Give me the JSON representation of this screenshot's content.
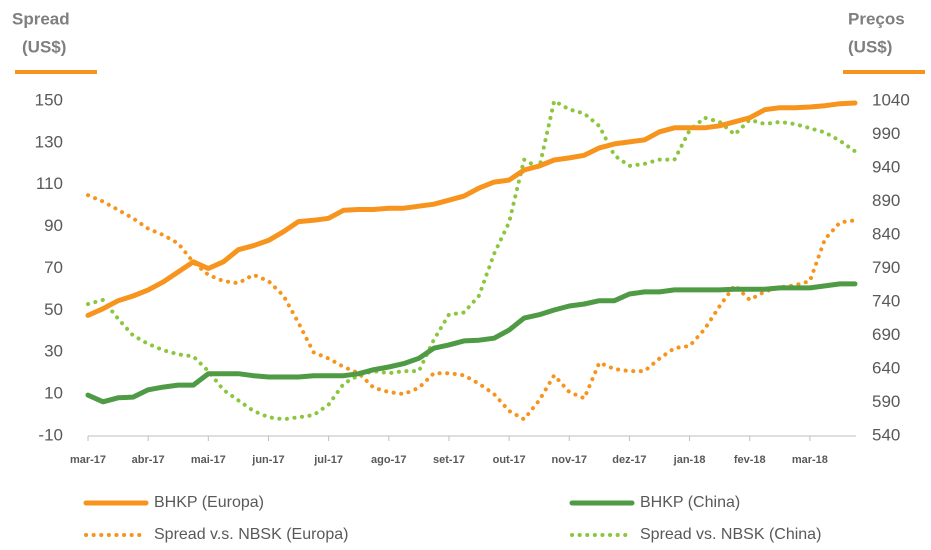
{
  "chart_data": {
    "type": "line",
    "ylabel": [
      "Spread",
      "(US$)"
    ],
    "y2label": [
      "Preços",
      "(US$)"
    ],
    "categories": [
      "mar-17",
      null,
      null,
      null,
      "abr-17",
      null,
      null,
      null,
      "mai-17",
      null,
      null,
      null,
      "jun-17",
      null,
      null,
      null,
      "jul-17",
      null,
      null,
      null,
      "ago-17",
      null,
      null,
      null,
      "set-17",
      null,
      null,
      null,
      "out-17",
      null,
      null,
      null,
      "nov-17",
      null,
      null,
      null,
      "dez-17",
      null,
      null,
      null,
      "jan-18",
      null,
      null,
      null,
      "fev-18",
      null,
      null,
      null,
      "mar-18",
      null,
      null,
      null
    ],
    "ylim": [
      -10,
      150
    ],
    "yticks": [
      -10,
      10,
      30,
      50,
      70,
      90,
      110,
      130,
      150
    ],
    "y2lim": [
      540,
      1040
    ],
    "y2ticks": [
      540,
      590,
      640,
      690,
      740,
      790,
      840,
      890,
      940,
      990,
      1040
    ],
    "series": [
      {
        "name": "BHKP (Europa)",
        "color": "#f7941d",
        "style": "solid",
        "axis": "y2",
        "values": [
          720,
          730,
          742,
          749,
          758,
          770,
          785,
          800,
          790,
          800,
          818,
          824,
          832,
          845,
          860,
          862,
          865,
          877,
          878,
          878,
          880,
          880,
          883,
          886,
          892,
          898,
          910,
          919,
          922,
          937,
          943,
          952,
          955,
          959,
          970,
          976,
          979,
          982,
          994,
          1000,
          1000,
          1000,
          1003,
          1009,
          1015,
          1027,
          1030,
          1030,
          1031,
          1033,
          1036,
          1037
        ]
      },
      {
        "name": "BHKP (China)",
        "color": "#4e9a45",
        "style": "solid",
        "axis": "y2",
        "values": [
          601,
          591,
          597,
          598,
          609,
          613,
          616,
          616,
          633,
          633,
          633,
          630,
          628,
          628,
          628,
          630,
          630,
          630,
          633,
          639,
          643,
          648,
          656,
          671,
          676,
          682,
          683,
          686,
          698,
          716,
          721,
          728,
          734,
          737,
          742,
          742,
          752,
          755,
          755,
          758,
          758,
          758,
          758,
          759,
          759,
          759,
          761,
          761,
          761,
          764,
          767,
          767
        ]
      },
      {
        "name": "Spread v.s. NBSK (Europa)",
        "color": "#f7941d",
        "style": "dotted",
        "values": [
          105,
          102,
          98,
          94,
          89,
          86,
          82,
          73,
          67,
          64,
          63,
          67,
          64,
          57,
          44,
          30,
          27,
          23,
          20,
          13,
          11,
          10,
          13,
          20,
          20,
          19,
          15,
          10,
          2,
          -2,
          7,
          19,
          11,
          8,
          25,
          22,
          21,
          21,
          27,
          32,
          33,
          41,
          52,
          62,
          55,
          59,
          61,
          62,
          64,
          84,
          92,
          93
        ]
      },
      {
        "name": "Spread vs. NBSK (China)",
        "color": "#8cc63f",
        "style": "dotted",
        "values": [
          53,
          55,
          46,
          38,
          34,
          31,
          29,
          28,
          21,
          12,
          7,
          2,
          -1,
          -2,
          -1,
          0,
          5,
          15,
          19,
          21,
          20,
          21,
          21,
          36,
          48,
          49,
          57,
          77,
          92,
          122,
          118,
          150,
          146,
          144,
          138,
          124,
          119,
          120,
          122,
          122,
          136,
          142,
          140,
          134,
          141,
          139,
          140,
          139,
          137,
          135,
          131,
          126
        ]
      }
    ]
  }
}
